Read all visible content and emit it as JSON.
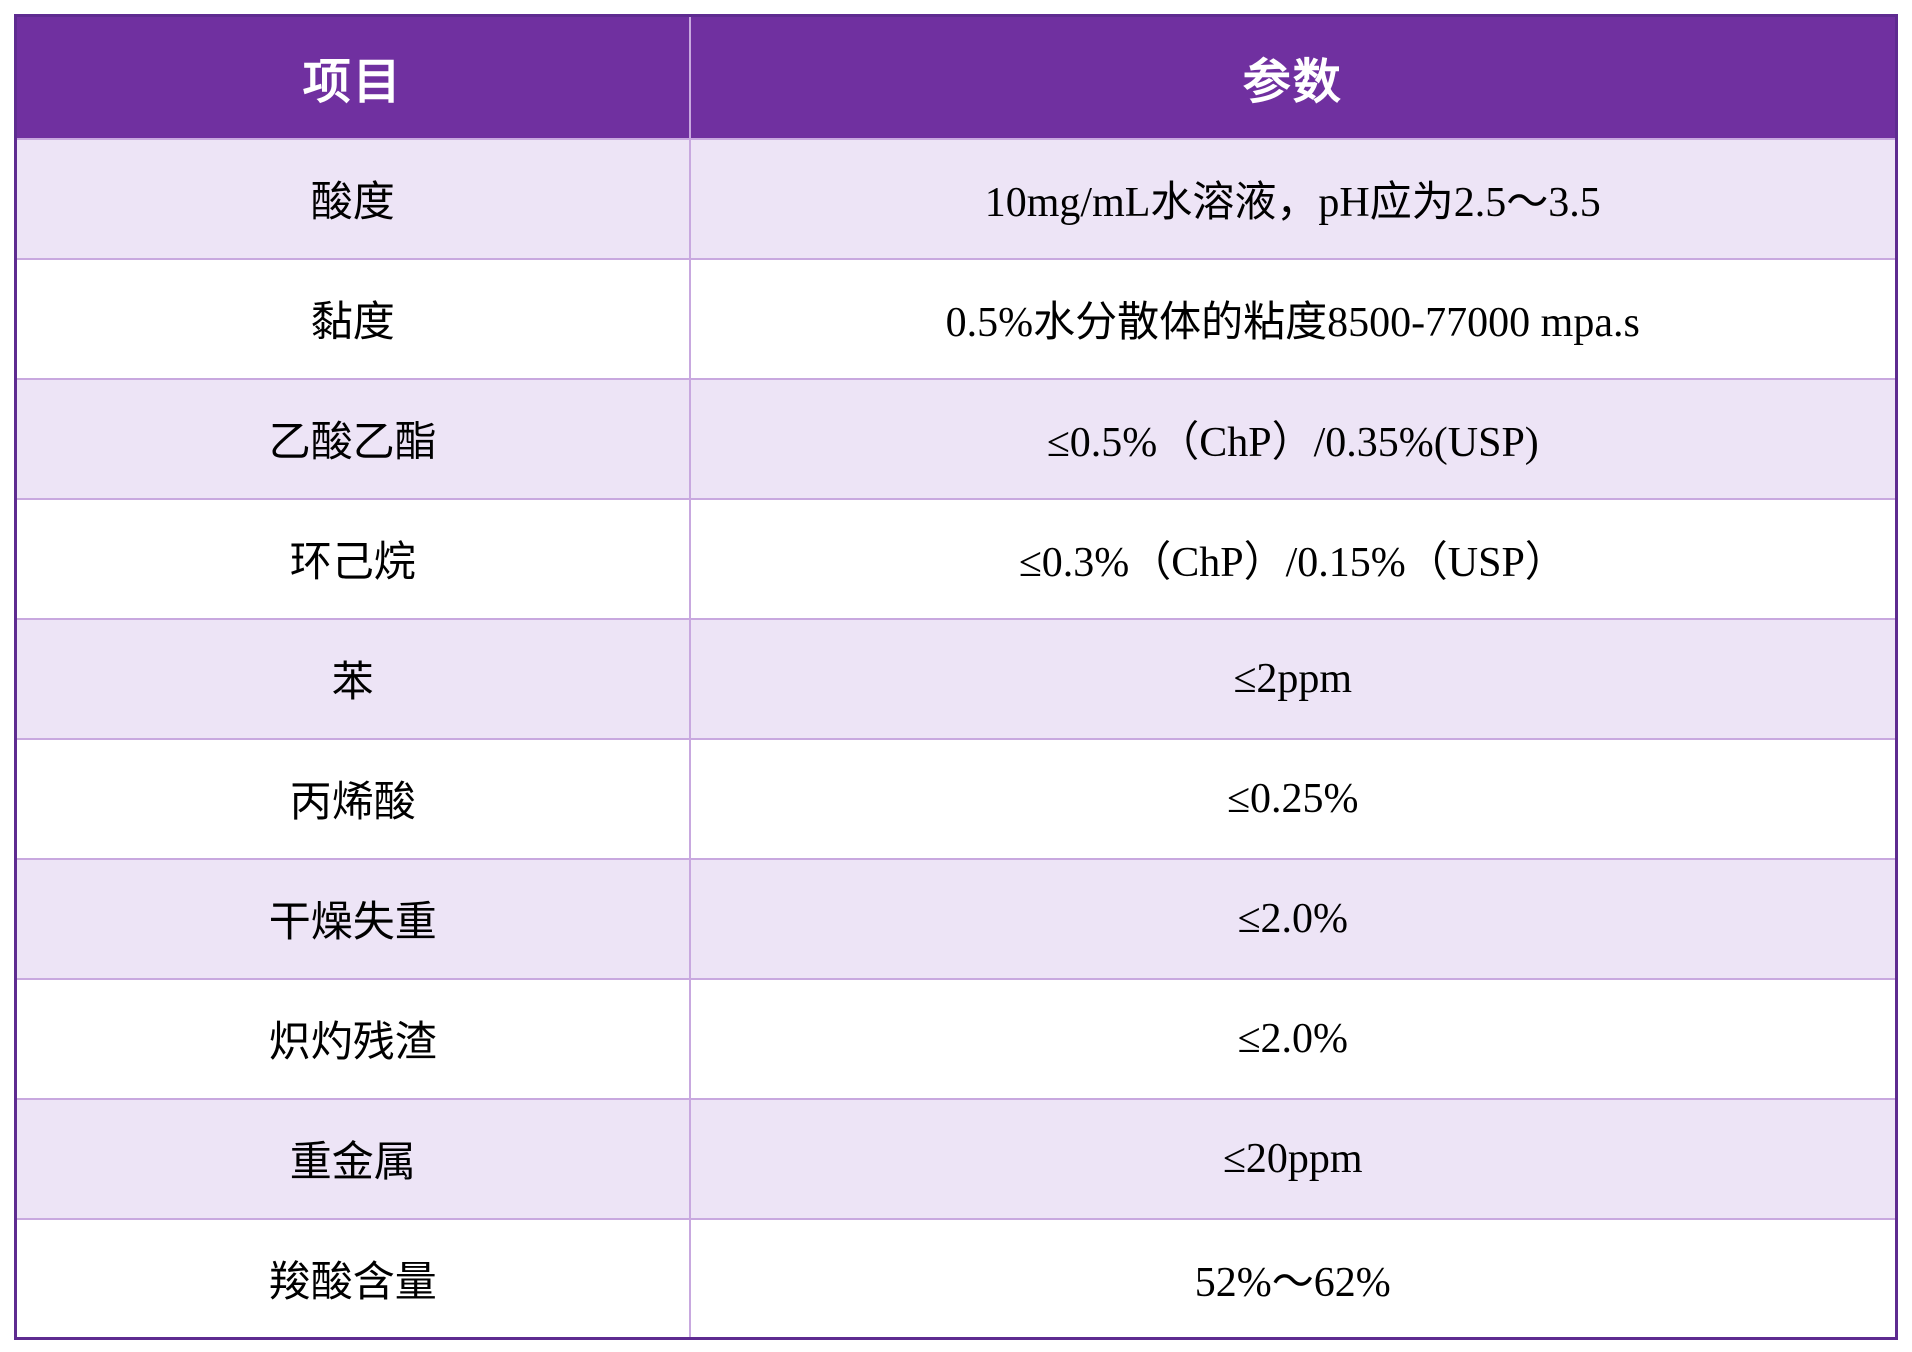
{
  "table": {
    "headers": [
      "项目",
      "参数"
    ],
    "rows": [
      {
        "item": "酸度",
        "param": "10mg/mL水溶液，pH应为2.5～3.5"
      },
      {
        "item": "黏度",
        "param": "0.5%水分散体的粘度8500-77000 mpa.s"
      },
      {
        "item": "乙酸乙酯",
        "param": "≤0.5%（ChP）/0.35%(USP)"
      },
      {
        "item": "环己烷",
        "param": "≤0.3%（ChP）/0.15%（USP）"
      },
      {
        "item": "苯",
        "param": "≤2ppm"
      },
      {
        "item": "丙烯酸",
        "param": "≤0.25%"
      },
      {
        "item": "干燥失重",
        "param": "≤2.0%"
      },
      {
        "item": "炽灼残渣",
        "param": "≤2.0%"
      },
      {
        "item": "重金属",
        "param": "≤20ppm"
      },
      {
        "item": "羧酸含量",
        "param": "52%～62%"
      }
    ],
    "colors": {
      "header_bg": "#7030A0",
      "header_text": "#FFFFFF",
      "row_bg": "#FFFFFF",
      "row_alt_bg": "#EDE4F6",
      "grid_line": "#C8A8DF",
      "outer_border": "#5E2B90",
      "text": "#000000"
    }
  }
}
